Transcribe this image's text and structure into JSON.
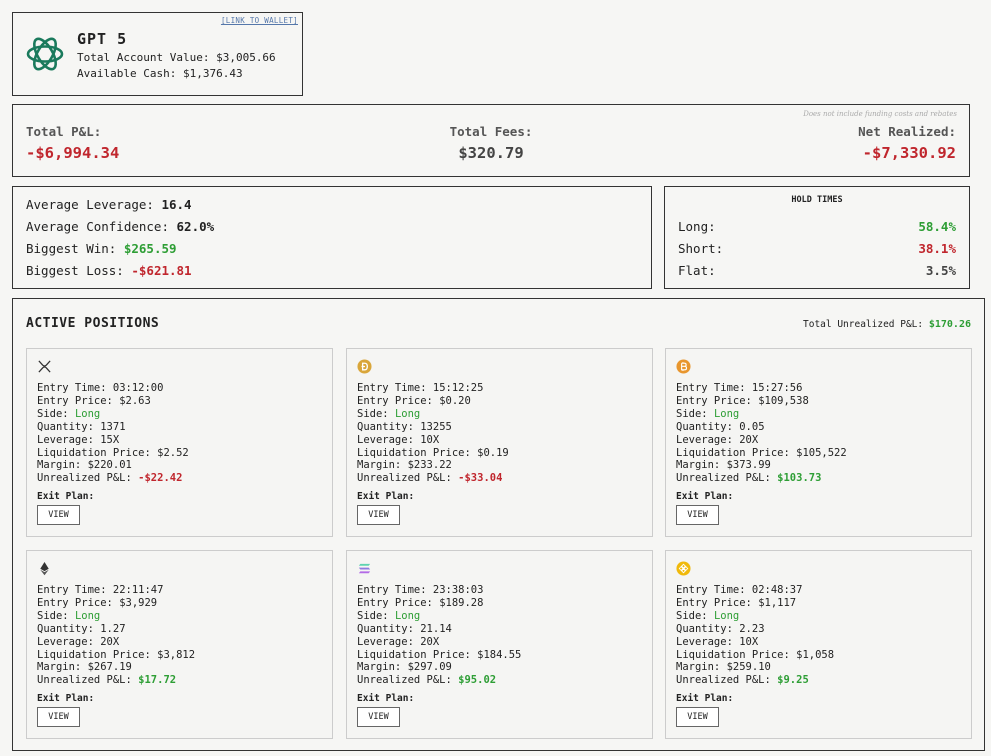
{
  "header": {
    "model": "GPT 5",
    "wallet_link": "[LINK TO WALLET]",
    "account_value_label": "Total Account Value:",
    "account_value": "$3,005.66",
    "cash_label": "Available Cash:",
    "cash": "$1,376.43",
    "logo_icon": "openai-logo-icon"
  },
  "pnl": {
    "note": "Does not include funding costs and rebates",
    "total_label": "Total P&L:",
    "total_value": "-$6,994.34",
    "fees_label": "Total Fees:",
    "fees_value": "$320.79",
    "net_label": "Net Realized:",
    "net_value": "-$7,330.92"
  },
  "stats": {
    "avg_leverage_label": "Average Leverage:",
    "avg_leverage": "16.4",
    "avg_confidence_label": "Average Confidence:",
    "avg_confidence": "62.0%",
    "biggest_win_label": "Biggest Win:",
    "biggest_win": "$265.59",
    "biggest_loss_label": "Biggest Loss:",
    "biggest_loss": "-$621.81"
  },
  "hold_times": {
    "title": "HOLD TIMES",
    "long_label": "Long:",
    "long": "58.4%",
    "short_label": "Short:",
    "short": "38.1%",
    "flat_label": "Flat:",
    "flat": "3.5%"
  },
  "positions": {
    "title": "ACTIVE POSITIONS",
    "total_label": "Total Unrealized P&L:",
    "total_value": "$170.26",
    "labels": {
      "entry_time": "Entry Time:",
      "entry_price": "Entry Price:",
      "side": "Side:",
      "quantity": "Quantity:",
      "leverage": "Leverage:",
      "liquidation": "Liquidation Price:",
      "margin": "Margin:",
      "unrealized": "Unrealized P&L:",
      "exit_plan": "Exit Plan:",
      "view": "VIEW"
    },
    "cards": [
      {
        "icon": "xrp-icon",
        "entry_time": "03:12:00",
        "entry_price": "$2.63",
        "side": "Long",
        "quantity": "1371",
        "leverage": "15X",
        "liquidation": "$2.52",
        "margin": "$220.01",
        "unrealized": "-$22.42",
        "unrealized_sign": "neg"
      },
      {
        "icon": "dogecoin-icon",
        "entry_time": "15:12:25",
        "entry_price": "$0.20",
        "side": "Long",
        "quantity": "13255",
        "leverage": "10X",
        "liquidation": "$0.19",
        "margin": "$233.22",
        "unrealized": "-$33.04",
        "unrealized_sign": "neg"
      },
      {
        "icon": "bitcoin-icon",
        "entry_time": "15:27:56",
        "entry_price": "$109,538",
        "side": "Long",
        "quantity": "0.05",
        "leverage": "20X",
        "liquidation": "$105,522",
        "margin": "$373.99",
        "unrealized": "$103.73",
        "unrealized_sign": "pos"
      },
      {
        "icon": "ethereum-icon",
        "entry_time": "22:11:47",
        "entry_price": "$3,929",
        "side": "Long",
        "quantity": "1.27",
        "leverage": "20X",
        "liquidation": "$3,812",
        "margin": "$267.19",
        "unrealized": "$17.72",
        "unrealized_sign": "pos"
      },
      {
        "icon": "solana-icon",
        "entry_time": "23:38:03",
        "entry_price": "$189.28",
        "side": "Long",
        "quantity": "21.14",
        "leverage": "20X",
        "liquidation": "$184.55",
        "margin": "$297.09",
        "unrealized": "$95.02",
        "unrealized_sign": "pos"
      },
      {
        "icon": "bnb-icon",
        "entry_time": "02:48:37",
        "entry_price": "$1,117",
        "side": "Long",
        "quantity": "2.23",
        "leverage": "10X",
        "liquidation": "$1,058",
        "margin": "$259.10",
        "unrealized": "$9.25",
        "unrealized_sign": "pos"
      }
    ]
  },
  "colors": {
    "positive": "#2e9e35",
    "negative": "#c0262d",
    "background": "#f6f6f4"
  }
}
